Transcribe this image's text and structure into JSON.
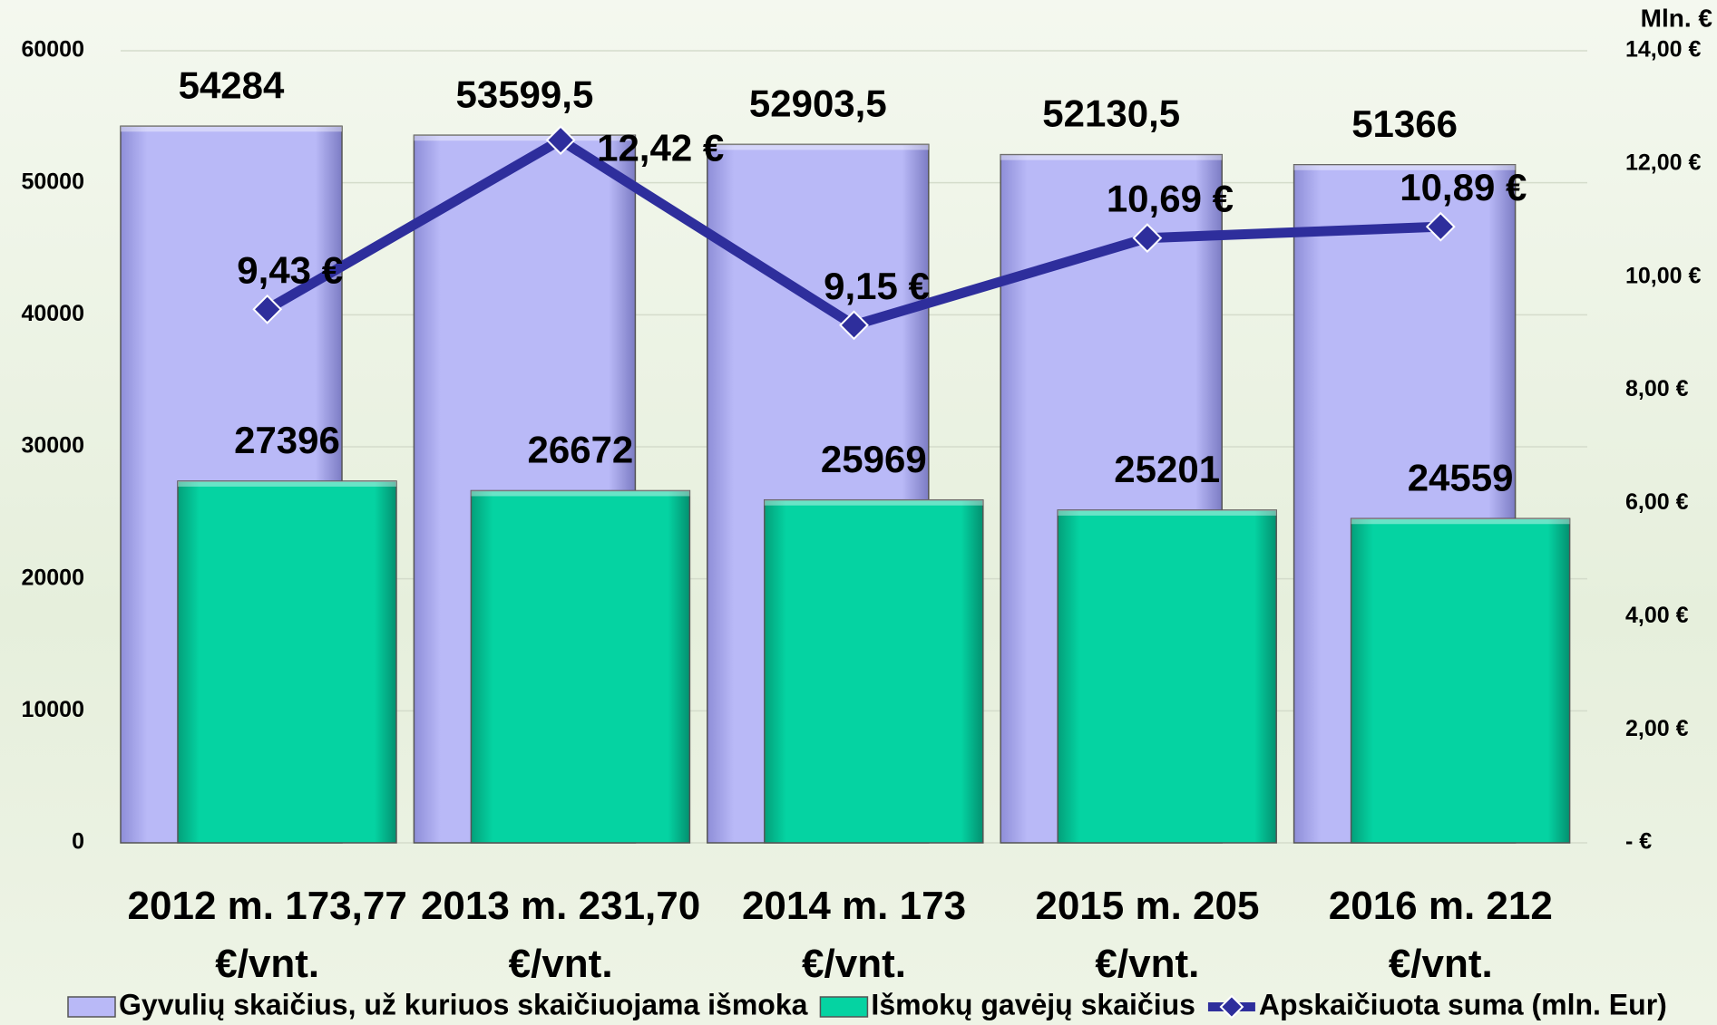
{
  "chart_data": {
    "type": "bar",
    "categories": [
      "2012 m. 173,77 €/vnt.",
      "2013 m. 231,70 €/vnt.",
      "2014 m. 173 €/vnt.",
      "2015 m. 205 €/vnt.",
      "2016 m. 212 €/vnt."
    ],
    "series": [
      {
        "name": "Gyvulių skaičius, už kuriuos skaičiuojama išmoka",
        "color": "#b9b9f7",
        "type": "bar",
        "values": [
          54284,
          53599.5,
          52903.5,
          52130.5,
          51366
        ],
        "value_labels": [
          "54284",
          "53599,5",
          "52903,5",
          "52130,5",
          "51366"
        ]
      },
      {
        "name": "Išmokų gavėjų skaičius",
        "color": "#05d3a2",
        "type": "bar",
        "values": [
          27396,
          26672,
          25969,
          25201,
          24559
        ]
      },
      {
        "name": "Apskaičiuota suma (mln. Eur)",
        "color": "#2e2e9c",
        "type": "line",
        "axis": "y2",
        "values": [
          9.43,
          12.42,
          9.15,
          10.69,
          10.89
        ],
        "value_labels": [
          "9,43 €",
          "12,42 €",
          "9,15 €",
          "10,69 €",
          "10,89 €"
        ]
      }
    ],
    "ylim": [
      0,
      60000
    ],
    "yticks": [
      0,
      10000,
      20000,
      30000,
      40000,
      50000,
      60000
    ],
    "y2label": "Mln. €",
    "y2lim": [
      0,
      14
    ],
    "y2ticks": [
      {
        "value": 0,
        "label": "-   €"
      },
      {
        "value": 2,
        "label": "2,00 €"
      },
      {
        "value": 4,
        "label": "4,00 €"
      },
      {
        "value": 6,
        "label": "6,00 €"
      },
      {
        "value": 8,
        "label": "8,00 €"
      },
      {
        "value": 10,
        "label": "10,00 €"
      },
      {
        "value": 12,
        "label": "12,00 €"
      },
      {
        "value": 14,
        "label": "14,00 €"
      }
    ],
    "grid": true,
    "legend": "bottom"
  }
}
